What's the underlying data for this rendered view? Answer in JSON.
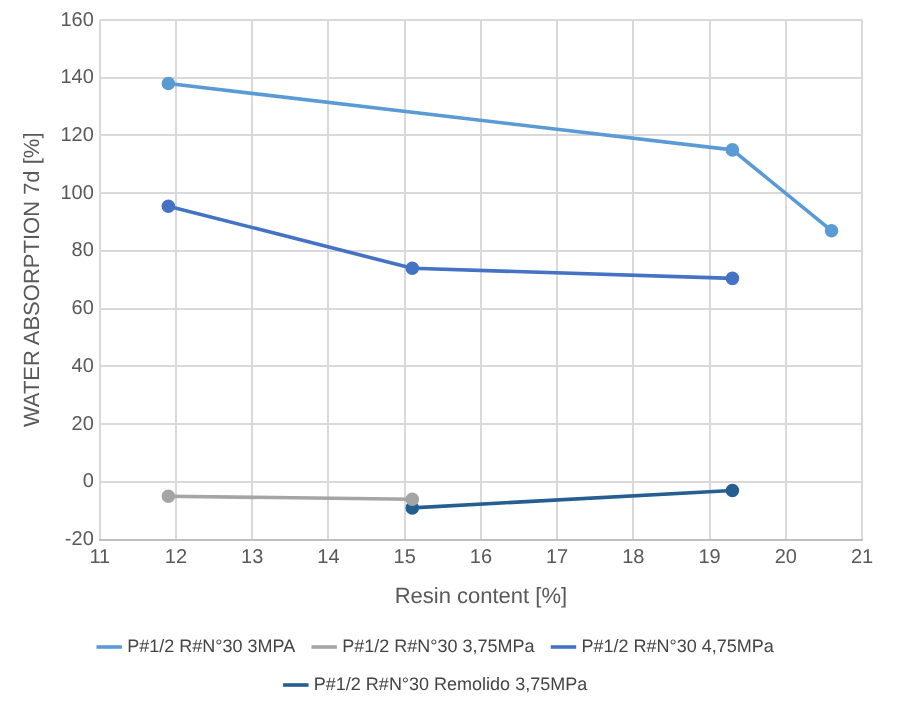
{
  "chart_data": {
    "type": "line",
    "xlabel": "Resin content [%]",
    "ylabel": "WATER ABSORPTION 7d [%]",
    "xlim": [
      11,
      21
    ],
    "xticks": [
      11,
      12,
      13,
      14,
      15,
      16,
      17,
      18,
      19,
      20,
      21
    ],
    "ylim": [
      -20,
      160
    ],
    "yticks": [
      -20,
      0,
      20,
      40,
      60,
      80,
      100,
      120,
      140,
      160
    ],
    "grid": true,
    "legend": "bottom",
    "marker": "circle",
    "line_style": "solid",
    "series": [
      {
        "name": "P#1/2 R#N°30 3MPA",
        "color": "#5b9bd5",
        "x": [
          11.9,
          19.3,
          20.6
        ],
        "values": [
          138,
          115,
          87
        ]
      },
      {
        "name": "P#1/2 R#N°30 3,75MPa",
        "color": "#a5a5a5",
        "x": [
          11.9,
          15.1
        ],
        "values": [
          -5,
          -6
        ]
      },
      {
        "name": "P#1/2 R#N°30 4,75MPa",
        "color": "#4472c4",
        "x": [
          11.9,
          15.1,
          19.3
        ],
        "values": [
          95.5,
          74,
          70.5
        ]
      },
      {
        "name": "P#1/2 R#N°30 Remolido 3,75MPa",
        "color": "#255e91",
        "x": [
          15.1,
          19.3
        ],
        "values": [
          -9,
          -3
        ]
      }
    ]
  }
}
